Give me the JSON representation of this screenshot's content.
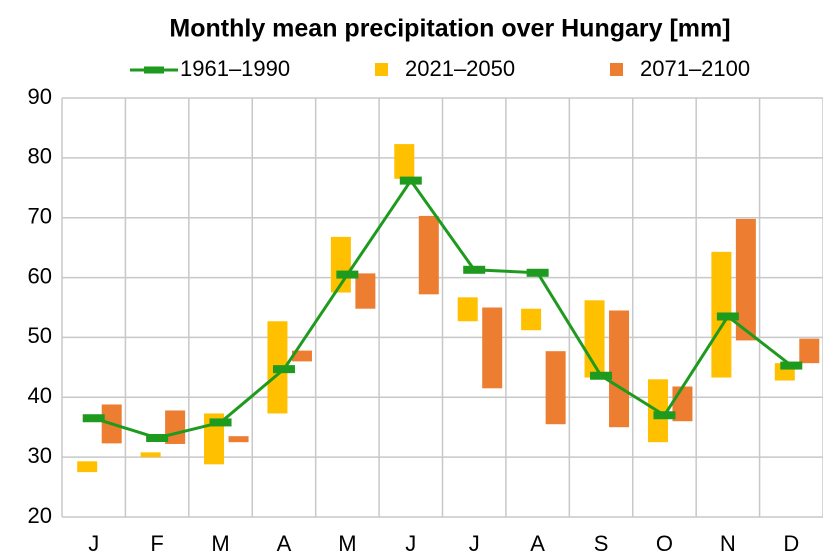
{
  "chart_data": {
    "type": "range-bar-line",
    "title": "Monthly mean precipitation over Hungary [mm]",
    "categories": [
      "J",
      "F",
      "M",
      "A",
      "M",
      "J",
      "J",
      "A",
      "S",
      "O",
      "N",
      "D"
    ],
    "series": [
      {
        "name": "1961–1990",
        "color": "#1e9a1e",
        "kind": "line",
        "values": [
          36.5,
          33.2,
          35.8,
          44.7,
          60.5,
          76.2,
          61.3,
          60.8,
          43.6,
          37.0,
          53.5,
          45.3
        ]
      },
      {
        "name": "2021–2050",
        "color": "#ffc000",
        "kind": "range",
        "low": [
          27.5,
          30.0,
          28.8,
          37.3,
          57.5,
          76.5,
          52.7,
          51.2,
          43.3,
          32.5,
          43.3,
          42.8
        ],
        "high": [
          29.3,
          30.8,
          37.3,
          52.7,
          66.8,
          82.3,
          56.7,
          54.8,
          56.2,
          43.0,
          64.3,
          45.7
        ]
      },
      {
        "name": "2071–2100",
        "color": "#ed7d31",
        "kind": "range",
        "low": [
          32.3,
          32.2,
          32.5,
          46.0,
          54.8,
          57.2,
          41.5,
          35.5,
          35.0,
          36.0,
          49.5,
          45.7
        ],
        "high": [
          38.8,
          37.8,
          33.5,
          47.8,
          60.7,
          70.3,
          55.0,
          47.7,
          54.5,
          41.8,
          69.8,
          49.8
        ]
      }
    ],
    "ylim": [
      20,
      90
    ],
    "yticks": [
      20,
      30,
      40,
      50,
      60,
      70,
      80,
      90
    ],
    "grid": true
  }
}
